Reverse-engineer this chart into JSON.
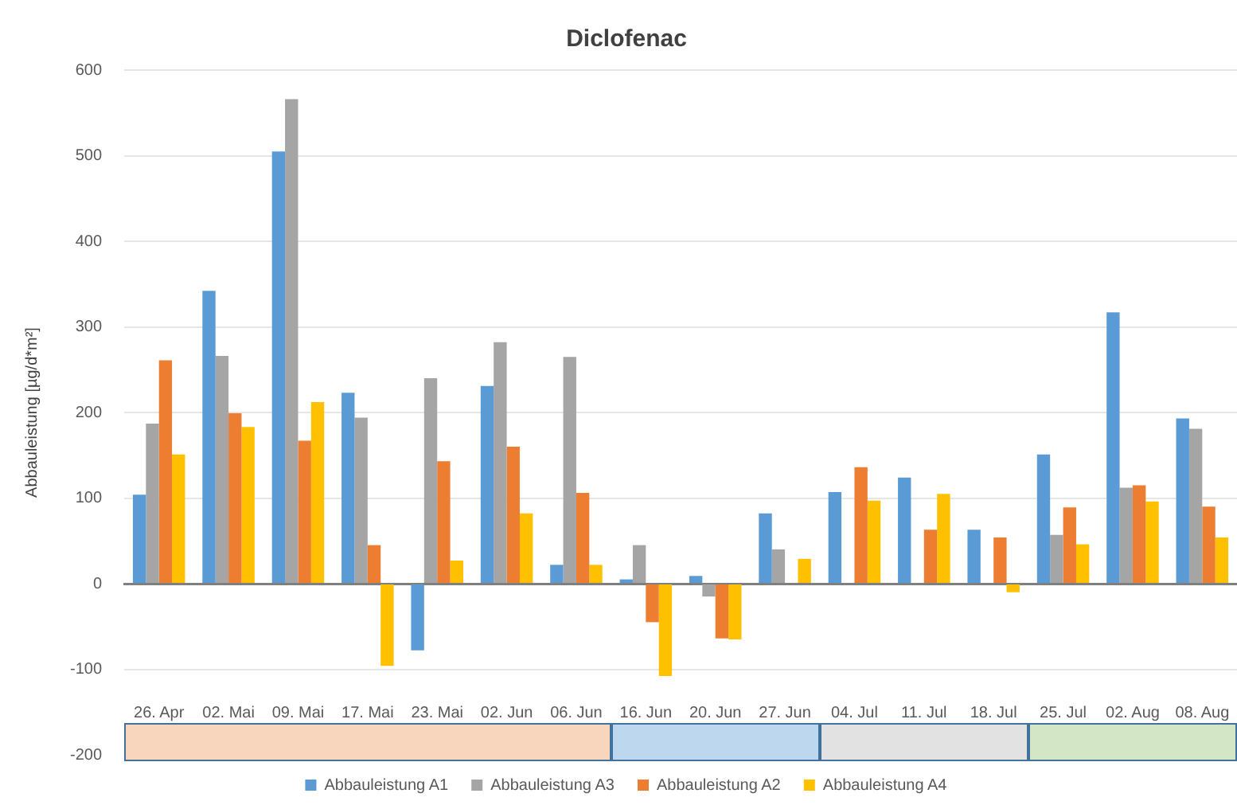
{
  "chart_data": {
    "type": "bar",
    "title": "Diclofenac",
    "ylabel": "Abbauleistung [µg/d*m²]",
    "categories": [
      "26. Apr",
      "02. Mai",
      "09. Mai",
      "17. Mai",
      "23. Mai",
      "02. Jun",
      "06. Jun",
      "16. Jun",
      "20. Jun",
      "27. Jun",
      "04. Jul",
      "11. Jul",
      "18. Jul",
      "25. Jul",
      "02. Aug",
      "08. Aug"
    ],
    "series": [
      {
        "name": "Abbauleistung A1",
        "color": "#5b9bd5",
        "values": [
          104,
          342,
          505,
          223,
          -78,
          231,
          22,
          5,
          9,
          82,
          107,
          124,
          63,
          151,
          317,
          193
        ]
      },
      {
        "name": "Abbauleistung A3",
        "color": "#a5a5a5",
        "values": [
          187,
          266,
          566,
          194,
          240,
          282,
          265,
          45,
          -15,
          40,
          null,
          null,
          null,
          57,
          112,
          181
        ]
      },
      {
        "name": "Abbauleistung A2",
        "color": "#ed7d31",
        "values": [
          261,
          199,
          167,
          45,
          143,
          160,
          106,
          -45,
          -64,
          null,
          136,
          63,
          54,
          89,
          115,
          90
        ]
      },
      {
        "name": "Abbauleistung A4",
        "color": "#ffc000",
        "values": [
          151,
          183,
          212,
          -96,
          27,
          82,
          22,
          -108,
          -65,
          29,
          97,
          105,
          -10,
          46,
          96,
          54
        ]
      }
    ],
    "ylim": [
      -200,
      600
    ],
    "yticks": [
      -200,
      -100,
      0,
      100,
      200,
      300,
      400,
      500,
      600
    ],
    "grid": "y",
    "legend": "bottom"
  }
}
